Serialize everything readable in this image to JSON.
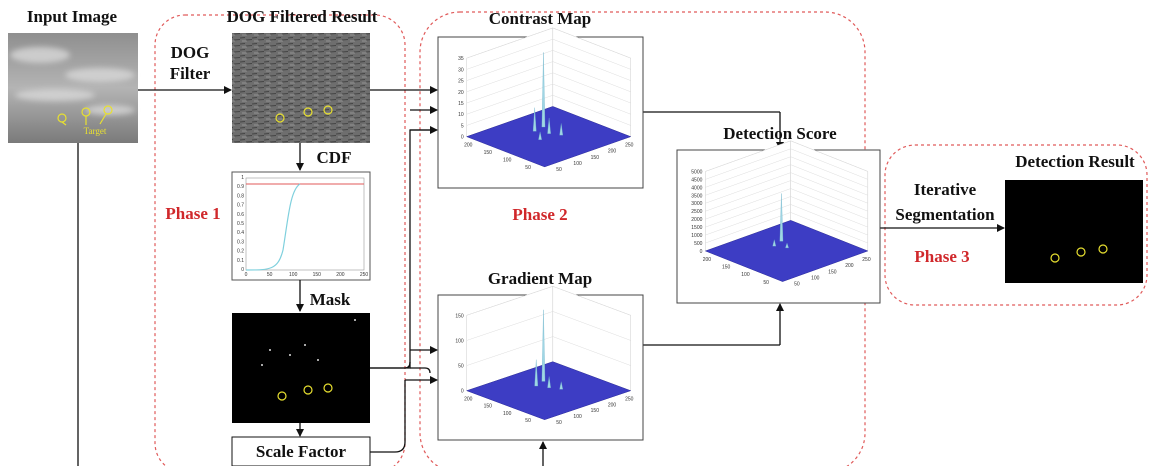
{
  "input_image": {
    "title": "Input Image",
    "annotation": "Target"
  },
  "dog_filter": {
    "lines": [
      "DOG",
      "Filter"
    ]
  },
  "dog_result": {
    "title": "DOG Filtered Result"
  },
  "cdf": {
    "label": "CDF",
    "x_ticks": [
      0,
      50,
      100,
      150,
      200,
      250
    ],
    "y_ticks": [
      0,
      0.1,
      0.2,
      0.3,
      0.4,
      0.5,
      0.6,
      0.7,
      0.8,
      0.9,
      1
    ]
  },
  "phase1": {
    "label": "Phase 1"
  },
  "mask": {
    "label": "Mask"
  },
  "scale_factor": {
    "label": "Scale Factor"
  },
  "contrast_map": {
    "title": "Contrast Map",
    "z_ticks": [
      0,
      5,
      10,
      15,
      20,
      25,
      30,
      35
    ],
    "y_ticks": [
      200,
      150,
      100,
      50
    ],
    "x_ticks": [
      50,
      100,
      150,
      200,
      250
    ]
  },
  "phase2": {
    "label": "Phase 2"
  },
  "gradient_map": {
    "title": "Gradient Map",
    "z_ticks": [
      0,
      50,
      100,
      150
    ],
    "y_ticks": [
      200,
      150,
      100,
      50
    ],
    "x_ticks": [
      50,
      100,
      150,
      200,
      250
    ]
  },
  "detection_score": {
    "title": "Detection Score",
    "z_ticks": [
      0,
      500,
      1000,
      1500,
      2000,
      2500,
      3000,
      3500,
      4000,
      4500,
      5000
    ],
    "y_ticks": [
      200,
      150,
      100,
      50
    ],
    "x_ticks": [
      50,
      100,
      150,
      200,
      250
    ]
  },
  "iterative_segmentation": {
    "lines": [
      "Iterative",
      "Segmentation"
    ]
  },
  "phase3": {
    "label": "Phase 3"
  },
  "detection_result": {
    "title": "Detection Result"
  }
}
